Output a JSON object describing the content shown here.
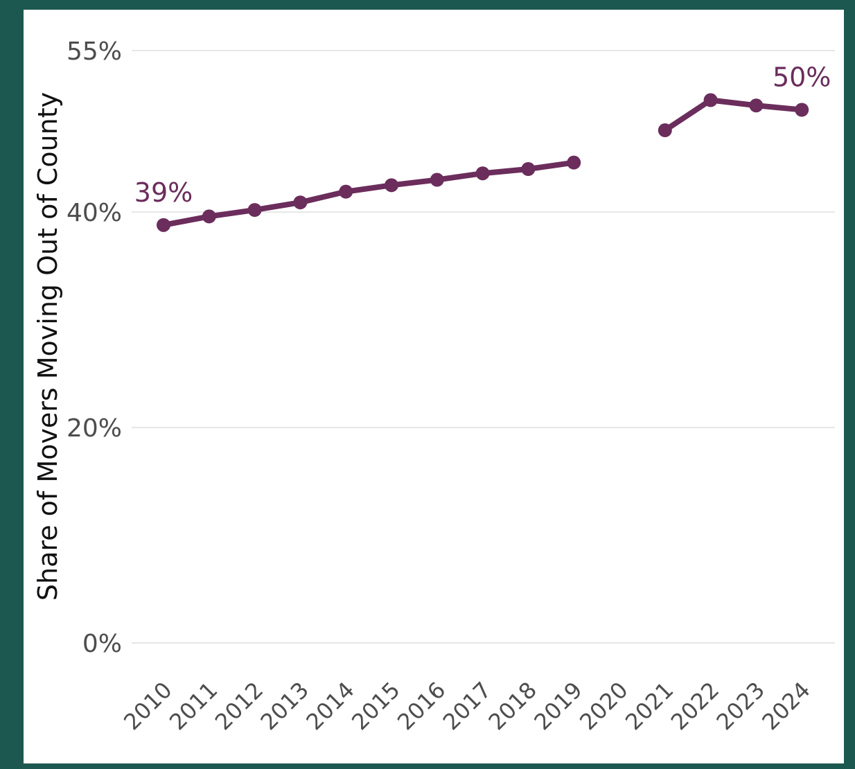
{
  "chart_data": {
    "type": "line",
    "title": "",
    "xlabel": "",
    "ylabel": "Share of Movers Moving Out of County",
    "x": [
      "2010",
      "2011",
      "2012",
      "2013",
      "2014",
      "2015",
      "2016",
      "2017",
      "2018",
      "2019",
      "2020",
      "2021",
      "2022",
      "2023",
      "2024"
    ],
    "series": [
      {
        "values": [
          38.8,
          39.6,
          40.2,
          40.9,
          41.9,
          42.5,
          43.0,
          43.6,
          44.0,
          44.6,
          null,
          47.6,
          50.4,
          49.9,
          49.5
        ]
      }
    ],
    "ylim": [
      0,
      55
    ],
    "yticks": [
      0,
      20,
      40,
      55
    ],
    "ytick_labels": [
      "0%",
      "20%",
      "40%",
      "55%"
    ],
    "grid": true,
    "annotations": [
      {
        "x": "2010",
        "text": "39%"
      },
      {
        "x": "2024",
        "text": "50%"
      }
    ],
    "colors": {
      "series": "#6b2d5c",
      "frame": "#1d5850",
      "grid": "#e6e6e6",
      "tick_text": "#4d4d4d"
    }
  }
}
